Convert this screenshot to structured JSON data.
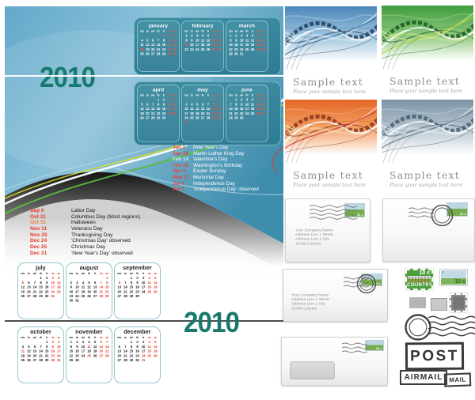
{
  "poster": {
    "year": "2010",
    "day_header": [
      "mo",
      "tu",
      "we",
      "th",
      "fr",
      "sa",
      "su"
    ],
    "months": [
      {
        "label": "january",
        "start": 4,
        "days": 31,
        "red": [
          1,
          2,
          3,
          9,
          10,
          16,
          17,
          18,
          23,
          24,
          30,
          31
        ]
      },
      {
        "label": "february",
        "start": 0,
        "days": 28,
        "red": [
          6,
          7,
          13,
          14,
          15,
          20,
          21,
          27,
          28
        ]
      },
      {
        "label": "march",
        "start": 0,
        "days": 31,
        "red": [
          6,
          7,
          13,
          14,
          20,
          21,
          27,
          28
        ]
      },
      {
        "label": "april",
        "start": 3,
        "days": 30,
        "red": [
          3,
          4,
          10,
          11,
          17,
          18,
          24,
          25
        ]
      },
      {
        "label": "may",
        "start": 5,
        "days": 31,
        "red": [
          1,
          2,
          8,
          9,
          15,
          16,
          22,
          23,
          29,
          30,
          31
        ]
      },
      {
        "label": "june",
        "start": 1,
        "days": 30,
        "red": [
          5,
          6,
          12,
          13,
          19,
          20,
          26,
          27
        ]
      },
      {
        "label": "july",
        "start": 3,
        "days": 31,
        "red": [
          3,
          4,
          5,
          10,
          11,
          17,
          18,
          24,
          25,
          31
        ]
      },
      {
        "label": "august",
        "start": 6,
        "days": 31,
        "red": [
          1,
          7,
          8,
          14,
          15,
          21,
          22,
          28,
          29
        ]
      },
      {
        "label": "september",
        "start": 2,
        "days": 30,
        "red": [
          4,
          5,
          6,
          11,
          12,
          18,
          19,
          25,
          26
        ]
      },
      {
        "label": "october",
        "start": 4,
        "days": 31,
        "red": [
          2,
          3,
          9,
          10,
          11,
          16,
          17,
          23,
          24,
          30,
          31
        ]
      },
      {
        "label": "november",
        "start": 0,
        "days": 30,
        "red": [
          6,
          7,
          11,
          13,
          14,
          20,
          21,
          25,
          27,
          28
        ]
      },
      {
        "label": "december",
        "start": 2,
        "days": 31,
        "red": [
          4,
          5,
          11,
          12,
          18,
          19,
          24,
          25,
          26,
          31
        ]
      }
    ],
    "holidays_first_half": [
      {
        "date": "Jan 1",
        "name": "New Year's Day",
        "muted": false
      },
      {
        "date": "Jan 18",
        "name": "Martin Luther King Day",
        "muted": false
      },
      {
        "date": "Feb 14",
        "name": "Valentine's Day",
        "muted": true
      },
      {
        "date": "Feb 15",
        "name": "Washington's Birthday",
        "muted": false
      },
      {
        "date": "Apr 4",
        "name": "Easter Sunday",
        "muted": false
      },
      {
        "date": "May 31",
        "name": "Memorial Day",
        "muted": false
      },
      {
        "date": "Jul 4",
        "name": "Independence Day",
        "muted": false
      },
      {
        "date": "Jul 5",
        "name": "'Independence Day' observed",
        "muted": false
      }
    ],
    "holidays_second_half": [
      {
        "date": "Sep 6",
        "name": "Labor Day",
        "muted": false
      },
      {
        "date": "Oct 11",
        "name": "Columbus Day (Most regions)",
        "muted": false
      },
      {
        "date": "Oct 31",
        "name": "Halloween",
        "muted": true
      },
      {
        "date": "Nov 11",
        "name": "Veterans Day",
        "muted": false
      },
      {
        "date": "Nov 25",
        "name": "Thanksgiving Day",
        "muted": false
      },
      {
        "date": "Dec 24",
        "name": "'Christmas Day' observed",
        "muted": false
      },
      {
        "date": "Dec 25",
        "name": "Christmas Day",
        "muted": false
      },
      {
        "date": "Dec 31",
        "name": "'New Year's Day' observed",
        "muted": false
      }
    ],
    "colors": {
      "year_text": "#187a6d",
      "weekend_red": "#e8392a",
      "muted_holiday": "#e8853c",
      "panel_teal": "#2f8098",
      "bg_blue": "#5ea7c6"
    }
  },
  "cards": [
    {
      "title": "Sample text",
      "subtitle": "Place your sample text here",
      "theme": {
        "base": "#4a86b8",
        "mid": "#9cc3dd",
        "dark": "#17304d",
        "light": "#d8eaf5",
        "accent": "#2e628f"
      }
    },
    {
      "title": "Sample text",
      "subtitle": "Place your sample text here",
      "theme": {
        "base": "#3f9b3f",
        "mid": "#8cc87c",
        "dark": "#124d18",
        "light": "#cfe98f",
        "accent": "#b8d22e"
      }
    },
    {
      "title": "Sample text",
      "subtitle": "Place your sample text here",
      "theme": {
        "base": "#e56624",
        "mid": "#f2a369",
        "dark": "#7e2a10",
        "light": "#fad9b8",
        "accent": "#c2272d"
      }
    },
    {
      "title": "Sample text",
      "subtitle": "Place your sample text here",
      "theme": {
        "base": "#7c93a5",
        "mid": "#b7c6d1",
        "dark": "#3e5364",
        "light": "#e2e9ee",
        "accent": "#55707f"
      }
    }
  ],
  "envelopes": {
    "address_lines": [
      "Your Company Name",
      "Address Line 1 Street",
      "Address Line 2 City",
      "12345 Country"
    ]
  },
  "stamps": {
    "denomination": "10 c",
    "country_label": "COUNTRY"
  },
  "marks": {
    "post": "POST",
    "airmail": "AIRMAIL",
    "mail": "MAIL"
  }
}
